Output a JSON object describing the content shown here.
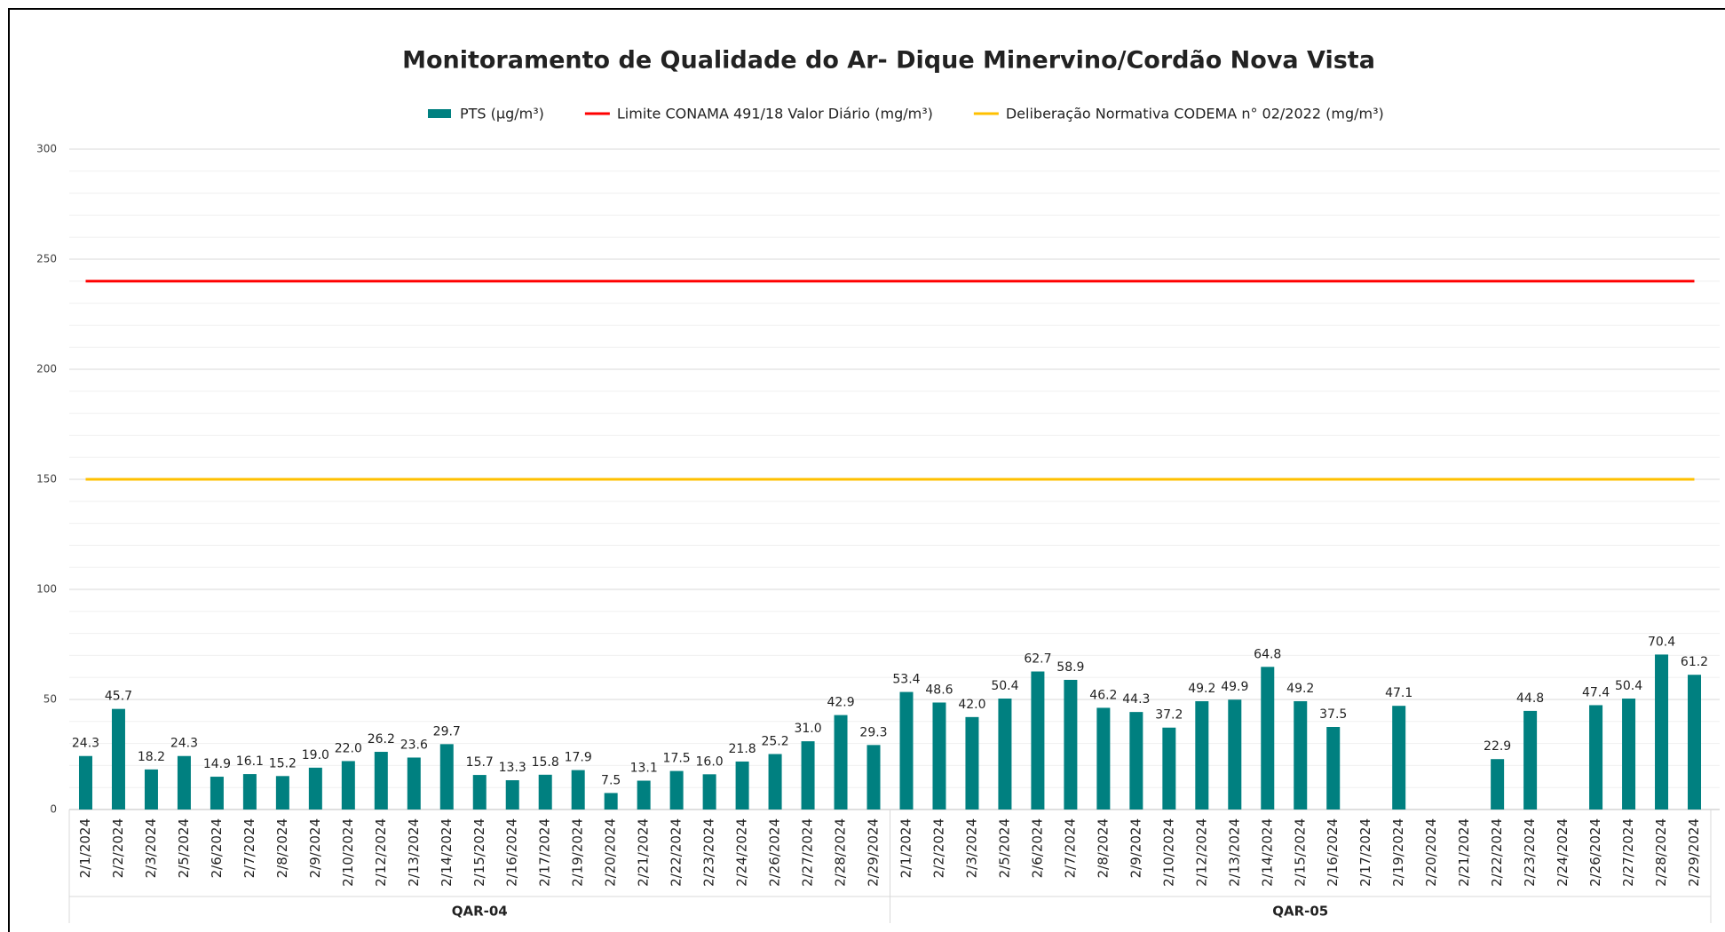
{
  "chart_data": {
    "type": "bar",
    "title": "Monitoramento de Qualidade do Ar- Dique Minervino/Cordão Nova Vista",
    "groups": [
      {
        "label": "QAR-04",
        "categories": [
          "2/1/2024",
          "2/2/2024",
          "2/3/2024",
          "2/5/2024",
          "2/6/2024",
          "2/7/2024",
          "2/8/2024",
          "2/9/2024",
          "2/10/2024",
          "2/12/2024",
          "2/13/2024",
          "2/14/2024",
          "2/15/2024",
          "2/16/2024",
          "2/17/2024",
          "2/19/2024",
          "2/20/2024",
          "2/21/2024",
          "2/22/2024",
          "2/23/2024",
          "2/24/2024",
          "2/26/2024",
          "2/27/2024",
          "2/28/2024",
          "2/29/2024"
        ]
      },
      {
        "label": "QAR-05",
        "categories": [
          "2/1/2024",
          "2/2/2024",
          "2/3/2024",
          "2/5/2024",
          "2/6/2024",
          "2/7/2024",
          "2/8/2024",
          "2/9/2024",
          "2/10/2024",
          "2/12/2024",
          "2/13/2024",
          "2/14/2024",
          "2/15/2024",
          "2/16/2024",
          "2/17/2024",
          "2/19/2024",
          "2/20/2024",
          "2/21/2024",
          "2/22/2024",
          "2/23/2024",
          "2/24/2024",
          "2/26/2024",
          "2/27/2024",
          "2/28/2024",
          "2/29/2024"
        ]
      }
    ],
    "series": [
      {
        "name": "PTS (µg/m³)",
        "type": "bar",
        "color": "#008080",
        "values": [
          24.3,
          45.7,
          18.2,
          24.3,
          14.9,
          16.1,
          15.2,
          19.0,
          22.0,
          26.2,
          23.6,
          29.7,
          15.7,
          13.3,
          15.8,
          17.9,
          7.5,
          13.1,
          17.5,
          16.0,
          21.8,
          25.2,
          31.0,
          42.9,
          29.3,
          53.4,
          48.6,
          42.0,
          50.4,
          62.7,
          58.9,
          46.2,
          44.3,
          37.2,
          49.2,
          49.9,
          64.8,
          49.2,
          37.5,
          null,
          47.1,
          null,
          null,
          22.9,
          44.8,
          null,
          47.4,
          50.4,
          70.4,
          61.2
        ],
        "value_labels": [
          "24.3",
          "45.7",
          "18.2",
          "24.3",
          "14.9",
          "16.1",
          "15.2",
          "19.0",
          "22.0",
          "26.2",
          "23.6",
          "29.7",
          "15.7",
          "13.3",
          "15.8",
          "17.9",
          "7.5",
          "13.1",
          "17.5",
          "16.0",
          "21.8",
          "25.2",
          "31.0",
          "42.9",
          "29.3",
          "53.4",
          "48.6",
          "42.0",
          "50.4",
          "62.7",
          "58.9",
          "46.2",
          "44.3",
          "37.2",
          "49.2",
          "49.9",
          "64.8",
          "49.2",
          "37.5",
          null,
          "47.1",
          null,
          null,
          "22.9",
          "44.8",
          null,
          "47.4",
          "50.4",
          "70.4",
          "61.2"
        ]
      },
      {
        "name": "Limite CONAMA 491/18  Valor Diário (mg/m³)",
        "type": "line",
        "color": "#ff0000",
        "values": [
          240,
          240,
          240,
          240,
          240,
          240,
          240,
          240,
          240,
          240,
          240,
          240,
          240,
          240,
          240,
          240,
          240,
          240,
          240,
          240,
          240,
          240,
          240,
          240,
          240,
          240,
          240,
          240,
          240,
          240,
          240,
          240,
          240,
          240,
          240,
          240,
          240,
          240,
          240,
          240,
          240,
          240,
          240,
          240,
          240,
          240,
          240,
          240,
          240,
          240
        ]
      },
      {
        "name": "Deliberação Normativa CODEMA n° 02/2022 (mg/m³)",
        "type": "line",
        "color": "#ffc000",
        "values": [
          150,
          150,
          150,
          150,
          150,
          150,
          150,
          150,
          150,
          150,
          150,
          150,
          150,
          150,
          150,
          150,
          150,
          150,
          150,
          150,
          150,
          150,
          150,
          150,
          150,
          150,
          150,
          150,
          150,
          150,
          150,
          150,
          150,
          150,
          150,
          150,
          150,
          150,
          150,
          150,
          150,
          150,
          150,
          150,
          150,
          150,
          150,
          150,
          150,
          150
        ]
      }
    ],
    "ylim": [
      0,
      300
    ],
    "yticks": [
      0,
      50,
      100,
      150,
      200,
      250,
      300
    ],
    "grid": true,
    "legend": "top"
  }
}
